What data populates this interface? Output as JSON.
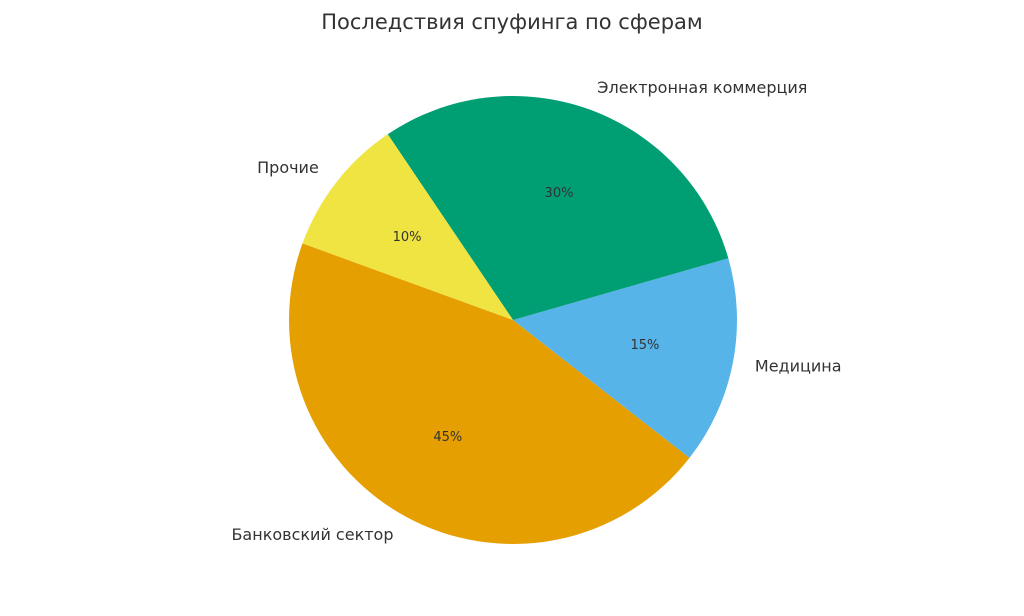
{
  "chart_data": {
    "type": "pie",
    "title": "Последствия спуфинга по сферам",
    "categories": [
      "Банковский сектор",
      "Медицина",
      "Электронная коммерция",
      "Прочие"
    ],
    "values": [
      45,
      15,
      30,
      10
    ],
    "value_labels": [
      "45%",
      "15%",
      "30%",
      "10%"
    ],
    "colors": [
      "#E69F00",
      "#56B4E9",
      "#009E73",
      "#F0E442"
    ],
    "legend": "none"
  }
}
